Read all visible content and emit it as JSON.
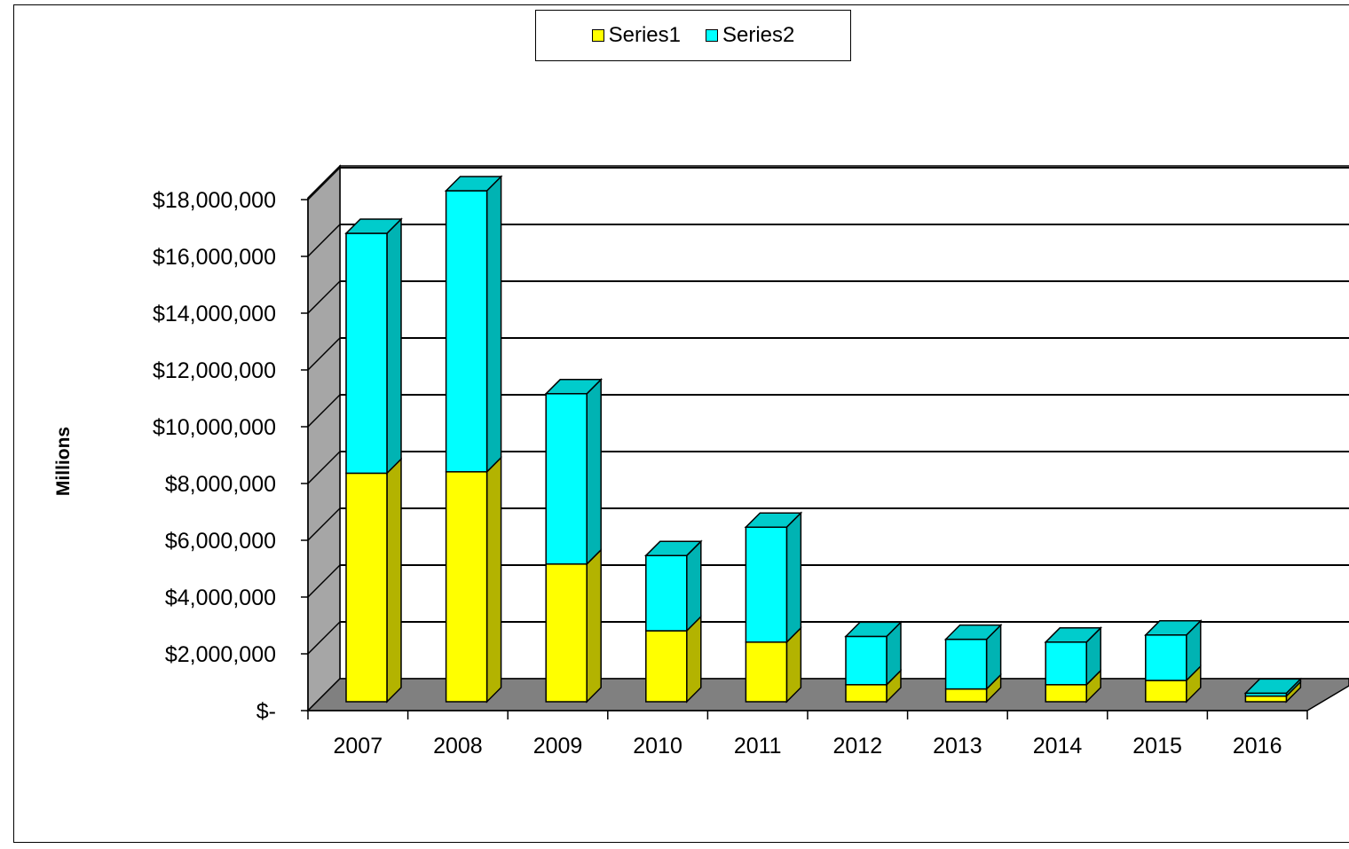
{
  "chart_data": {
    "type": "bar",
    "stacked": true,
    "style": "3d",
    "categories": [
      "2007",
      "2008",
      "2009",
      "2010",
      "2011",
      "2012",
      "2013",
      "2014",
      "2015",
      "2016"
    ],
    "series": [
      {
        "name": "Series1",
        "color": "#ffff00",
        "values": [
          8050000,
          8100000,
          4850000,
          2500000,
          2100000,
          600000,
          450000,
          600000,
          750000,
          200000
        ]
      },
      {
        "name": "Series2",
        "color": "#00ffff",
        "values": [
          8450000,
          9900000,
          6000000,
          2650000,
          4050000,
          1700000,
          1750000,
          1500000,
          1600000,
          100000
        ]
      }
    ],
    "ylabel": "Millions",
    "ylim": [
      0,
      18000000
    ],
    "yticks": [
      0,
      2000000,
      4000000,
      6000000,
      8000000,
      10000000,
      12000000,
      14000000,
      16000000,
      18000000
    ],
    "ytick_labels": [
      "$-",
      "$2,000,000",
      "$4,000,000",
      "$6,000,000",
      "$8,000,000",
      "$10,000,000",
      "$12,000,000",
      "$14,000,000",
      "$16,000,000",
      "$18,000,000"
    ],
    "grid": true,
    "legend": "top-center"
  }
}
